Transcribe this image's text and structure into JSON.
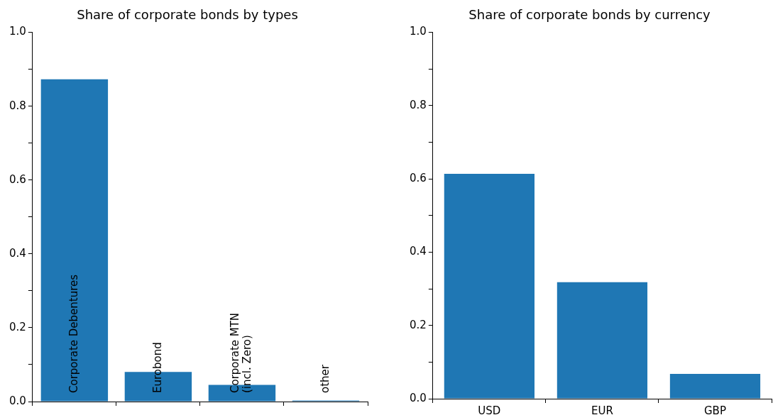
{
  "chart_data": [
    {
      "type": "bar",
      "title": "Share of corporate bonds by types",
      "categories": [
        "Corporate Debentures",
        "Eurobond",
        "Corporate MTN\n(incl. Zero)",
        "other"
      ],
      "values": [
        0.873,
        0.08,
        0.045,
        0.003
      ],
      "color": "#1f77b4",
      "ylim": [
        0,
        1
      ],
      "yticks": [
        {
          "value": 0,
          "label": "0.0"
        },
        {
          "value": 0.1,
          "label": null
        },
        {
          "value": 0.2,
          "label": "0.2"
        },
        {
          "value": 0.3,
          "label": null
        },
        {
          "value": 0.4,
          "label": "0.4"
        },
        {
          "value": 0.5,
          "label": null
        },
        {
          "value": 0.6,
          "label": "0.6"
        },
        {
          "value": 0.7,
          "label": null
        },
        {
          "value": 0.8,
          "label": "0.8"
        },
        {
          "value": 0.9,
          "label": null
        },
        {
          "value": 1,
          "label": "1.0"
        }
      ],
      "tick_labels": "y",
      "grid": false,
      "legend": false
    },
    {
      "type": "bar",
      "title": "Share of corporate bonds by currency",
      "categories": [
        "USD",
        "EUR",
        "GBP"
      ],
      "values": [
        0.614,
        0.318,
        0.068
      ],
      "color": "#1f77b4",
      "ylim": [
        0,
        1
      ],
      "yticks": [
        {
          "value": 0,
          "label": "0.0"
        },
        {
          "value": 0.1,
          "label": null
        },
        {
          "value": 0.2,
          "label": "0.2"
        },
        {
          "value": 0.3,
          "label": null
        },
        {
          "value": 0.4,
          "label": "0.4"
        },
        {
          "value": 0.5,
          "label": null
        },
        {
          "value": 0.6,
          "label": "0.6"
        },
        {
          "value": 0.7,
          "label": null
        },
        {
          "value": 0.8,
          "label": "0.8"
        },
        {
          "value": 0.9,
          "label": null
        },
        {
          "value": 1,
          "label": "1.0"
        }
      ],
      "grid": false,
      "legend": false
    }
  ]
}
